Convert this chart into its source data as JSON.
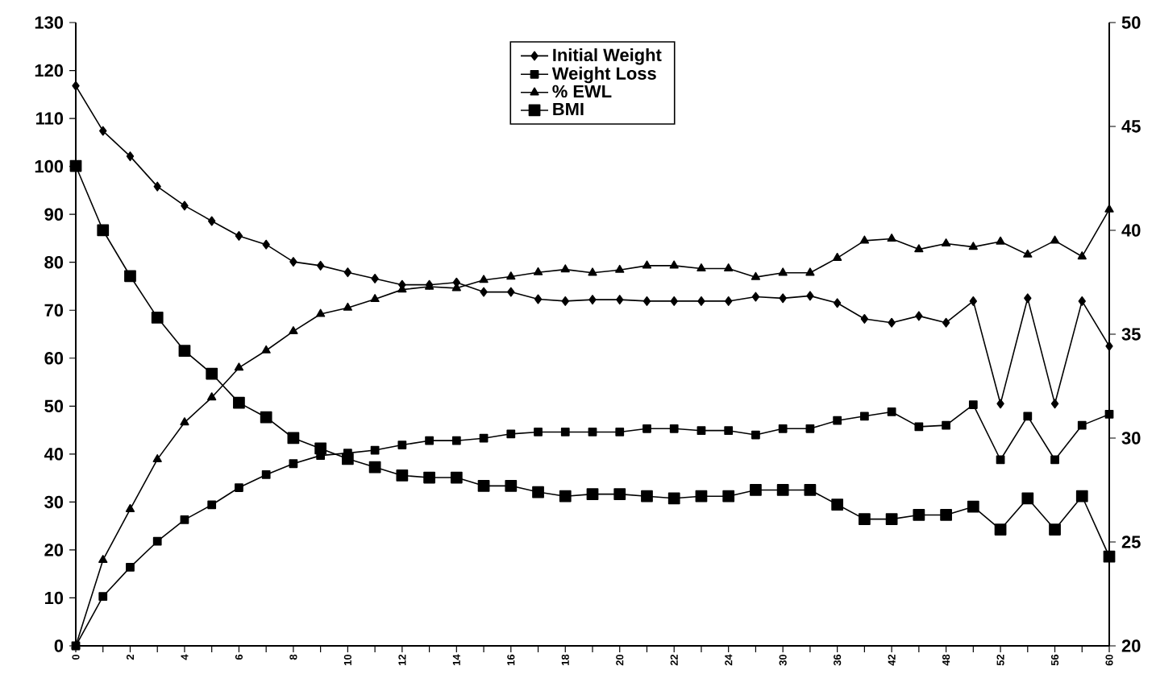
{
  "chart_data": {
    "type": "line",
    "categories": [
      "0",
      null,
      "2",
      null,
      "4",
      null,
      "6",
      null,
      "8",
      null,
      "10",
      null,
      "12",
      null,
      "14",
      null,
      "16",
      null,
      "18",
      null,
      "20",
      null,
      "22",
      null,
      "24",
      null,
      "30",
      null,
      "36",
      null,
      "42",
      null,
      "48",
      null,
      "52",
      null,
      "56",
      null,
      "60"
    ],
    "ylim": [
      0,
      130
    ],
    "yticks": [
      0,
      10,
      20,
      30,
      40,
      50,
      60,
      70,
      80,
      90,
      100,
      110,
      120,
      130
    ],
    "y2lim": [
      20,
      50
    ],
    "y2ticks": [
      20,
      25,
      30,
      35,
      40,
      45,
      50
    ],
    "legend": "top",
    "line_style": "solid",
    "series": [
      {
        "name": "Initial Weight",
        "color": "#000000",
        "marker": "diamond",
        "values": [
          116.8,
          107.4,
          102.1,
          95.8,
          91.8,
          88.6,
          85.5,
          83.7,
          80.1,
          79.3,
          77.9,
          76.6,
          75.3,
          75.3,
          75.8,
          73.8,
          73.8,
          72.3,
          71.9,
          72.2,
          72.2,
          71.9,
          71.9,
          71.9,
          71.9,
          72.8,
          72.5,
          73.0,
          71.5,
          68.2,
          67.4,
          68.8,
          67.4,
          71.9,
          50.5,
          72.5,
          50.5,
          71.9,
          62.5
        ]
      },
      {
        "name": "Weight Loss",
        "color": "#000000",
        "marker": "square",
        "values": [
          0,
          10.3,
          16.4,
          21.8,
          26.3,
          29.4,
          33.0,
          35.7,
          38.0,
          39.7,
          40.2,
          40.8,
          41.9,
          42.8,
          42.8,
          43.3,
          44.2,
          44.6,
          44.6,
          44.6,
          44.6,
          45.3,
          45.3,
          44.9,
          44.9,
          44.0,
          45.3,
          45.3,
          47.0,
          47.9,
          48.8,
          45.7,
          46.0,
          50.3,
          38.8,
          47.9,
          38.8,
          46.0,
          48.3
        ]
      },
      {
        "name": "% EWL",
        "color": "#000000",
        "marker": "triangle",
        "values": [
          0,
          17.9,
          28.5,
          38.9,
          46.6,
          51.8,
          58.0,
          61.6,
          65.6,
          69.2,
          70.5,
          72.3,
          74.3,
          74.9,
          74.6,
          76.3,
          77.0,
          77.9,
          78.5,
          77.8,
          78.4,
          79.3,
          79.3,
          78.7,
          78.7,
          76.9,
          77.8,
          77.8,
          80.9,
          84.5,
          84.9,
          82.7,
          83.9,
          83.2,
          84.3,
          81.6,
          84.5,
          81.2,
          91.0
        ]
      },
      {
        "name": "BMI",
        "color": "#000000",
        "marker": "square",
        "axis": "y2",
        "values": [
          43.1,
          40.0,
          37.8,
          35.8,
          34.2,
          33.1,
          31.7,
          31.0,
          30.0,
          29.5,
          29.0,
          28.6,
          28.2,
          28.1,
          28.1,
          27.7,
          27.7,
          27.4,
          27.2,
          27.3,
          27.3,
          27.2,
          27.1,
          27.2,
          27.2,
          27.5,
          27.5,
          27.5,
          26.8,
          26.1,
          26.1,
          26.3,
          26.3,
          26.7,
          25.6,
          27.1,
          25.6,
          27.2,
          24.3
        ]
      }
    ]
  }
}
